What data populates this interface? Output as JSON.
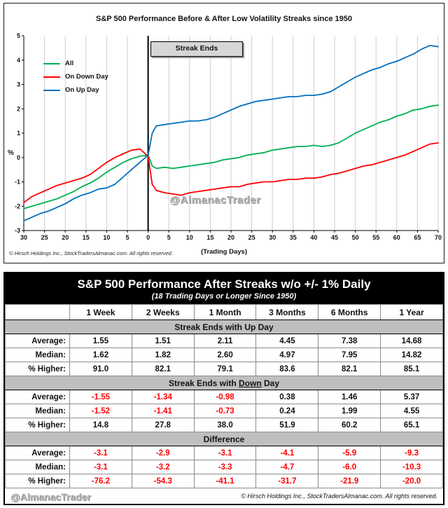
{
  "chart_data": {
    "type": "line",
    "title": "S&P 500 Performance Before & After Low Volatility Streaks since 1950",
    "xlabel": "(Trading Days)",
    "ylabel": "%",
    "xlim": [
      -30,
      70
    ],
    "ylim": [
      -3,
      5
    ],
    "x_ticks": [
      -30,
      -25,
      -20,
      -15,
      -10,
      -5,
      0,
      5,
      10,
      15,
      20,
      25,
      30,
      35,
      40,
      45,
      50,
      55,
      60,
      65,
      70
    ],
    "y_ticks": [
      -3,
      -2,
      -1,
      0,
      1,
      2,
      3,
      4,
      5
    ],
    "x_tick_label_style": "absolute-value",
    "grid": "vertical",
    "legend_position": "upper-left",
    "event_line_x": 0,
    "event_label": "Streak Ends",
    "watermark": "@AlmanacTrader",
    "copyright": "© Hirsch Holdings Inc., StockTradersAlmanac.com. All rights reserved.",
    "x": [
      -30,
      -28,
      -26,
      -24,
      -22,
      -20,
      -18,
      -16,
      -14,
      -12,
      -10,
      -8,
      -6,
      -4,
      -2,
      0,
      1,
      2,
      4,
      6,
      8,
      10,
      12,
      14,
      16,
      18,
      20,
      22,
      24,
      26,
      28,
      30,
      32,
      34,
      36,
      38,
      40,
      42,
      44,
      46,
      48,
      50,
      52,
      54,
      56,
      58,
      60,
      62,
      64,
      66,
      68,
      70
    ],
    "series": [
      {
        "name": "All",
        "color": "#00B050",
        "values": [
          -2.1,
          -2.0,
          -1.9,
          -1.8,
          -1.7,
          -1.55,
          -1.4,
          -1.2,
          -1.05,
          -0.85,
          -0.6,
          -0.4,
          -0.2,
          -0.05,
          0.05,
          0.1,
          -0.35,
          -0.45,
          -0.4,
          -0.45,
          -0.4,
          -0.35,
          -0.3,
          -0.25,
          -0.2,
          -0.1,
          -0.05,
          0.0,
          0.1,
          0.15,
          0.2,
          0.3,
          0.35,
          0.4,
          0.45,
          0.45,
          0.5,
          0.45,
          0.5,
          0.6,
          0.8,
          1.0,
          1.15,
          1.3,
          1.45,
          1.55,
          1.7,
          1.8,
          1.95,
          2.0,
          2.1,
          2.15
        ]
      },
      {
        "name": "On Down Day",
        "color": "#FF0000",
        "values": [
          -1.85,
          -1.6,
          -1.45,
          -1.3,
          -1.15,
          -1.05,
          -0.95,
          -0.85,
          -0.7,
          -0.45,
          -0.2,
          0.0,
          0.15,
          0.3,
          0.35,
          0.05,
          -1.1,
          -1.35,
          -1.45,
          -1.5,
          -1.55,
          -1.45,
          -1.4,
          -1.35,
          -1.3,
          -1.25,
          -1.2,
          -1.2,
          -1.1,
          -1.05,
          -1.0,
          -1.0,
          -0.95,
          -0.9,
          -0.9,
          -0.85,
          -0.85,
          -0.8,
          -0.7,
          -0.65,
          -0.55,
          -0.45,
          -0.35,
          -0.3,
          -0.2,
          -0.1,
          0.0,
          0.1,
          0.25,
          0.4,
          0.55,
          0.6
        ]
      },
      {
        "name": "On Up Day",
        "color": "#0070C0",
        "values": [
          -2.6,
          -2.45,
          -2.3,
          -2.2,
          -2.05,
          -1.9,
          -1.7,
          -1.55,
          -1.45,
          -1.3,
          -1.25,
          -1.1,
          -0.8,
          -0.5,
          -0.2,
          0.1,
          1.0,
          1.3,
          1.35,
          1.4,
          1.45,
          1.5,
          1.5,
          1.55,
          1.65,
          1.8,
          1.95,
          2.1,
          2.2,
          2.3,
          2.35,
          2.4,
          2.45,
          2.5,
          2.5,
          2.55,
          2.55,
          2.6,
          2.7,
          2.9,
          3.1,
          3.3,
          3.45,
          3.6,
          3.7,
          3.85,
          3.95,
          4.1,
          4.25,
          4.45,
          4.6,
          4.55
        ]
      }
    ]
  },
  "table": {
    "title": "S&P 500 Performance After Streaks w/o +/- 1% Daily",
    "subtitle": "(18 Trading Days or Longer Since 1950)",
    "columns": [
      "1 Week",
      "2 Weeks",
      "1 Month",
      "3 Months",
      "6 Months",
      "1 Year"
    ],
    "sections": [
      {
        "title_pre": "Streak Ends with Up Day",
        "title_u": "",
        "title_post": "",
        "rows": [
          {
            "label": "Average:",
            "values": [
              "1.55",
              "1.51",
              "2.11",
              "4.45",
              "7.38",
              "14.68"
            ]
          },
          {
            "label": "Median:",
            "values": [
              "1.62",
              "1.82",
              "2.60",
              "4.97",
              "7.95",
              "14.82"
            ]
          },
          {
            "label": "% Higher:",
            "values": [
              "91.0",
              "82.1",
              "79.1",
              "83.6",
              "82.1",
              "85.1"
            ]
          }
        ]
      },
      {
        "title_pre": "Streak Ends with ",
        "title_u": "Down",
        "title_post": " Day",
        "rows": [
          {
            "label": "Average:",
            "values": [
              "-1.55",
              "-1.34",
              "-0.98",
              "0.38",
              "1.46",
              "5.37"
            ]
          },
          {
            "label": "Median:",
            "values": [
              "-1.52",
              "-1.41",
              "-0.73",
              "0.24",
              "1.99",
              "4.55"
            ]
          },
          {
            "label": "% Higher:",
            "values": [
              "14.8",
              "27.8",
              "38.0",
              "51.9",
              "60.2",
              "65.1"
            ]
          }
        ]
      },
      {
        "title_pre": "Difference",
        "title_u": "",
        "title_post": "",
        "rows": [
          {
            "label": "Average:",
            "values": [
              "-3.1",
              "-2.9",
              "-3.1",
              "-4.1",
              "-5.9",
              "-9.3"
            ]
          },
          {
            "label": "Median:",
            "values": [
              "-3.1",
              "-3.2",
              "-3.3",
              "-4.7",
              "-6.0",
              "-10.3"
            ]
          },
          {
            "label": "% Higher:",
            "values": [
              "-76.2",
              "-54.3",
              "-41.1",
              "-31.7",
              "-21.9",
              "-20.0"
            ]
          }
        ]
      }
    ],
    "footer": "© Hirsch Holdings Inc., StockTradersAlmanac.com. All rights reserved.",
    "watermark": "@AlmanacTrader",
    "colors": {
      "negative": "#ff0000",
      "section_bg": "#bfbfbf",
      "header_bg": "#000000",
      "header_fg": "#ffffff"
    }
  }
}
